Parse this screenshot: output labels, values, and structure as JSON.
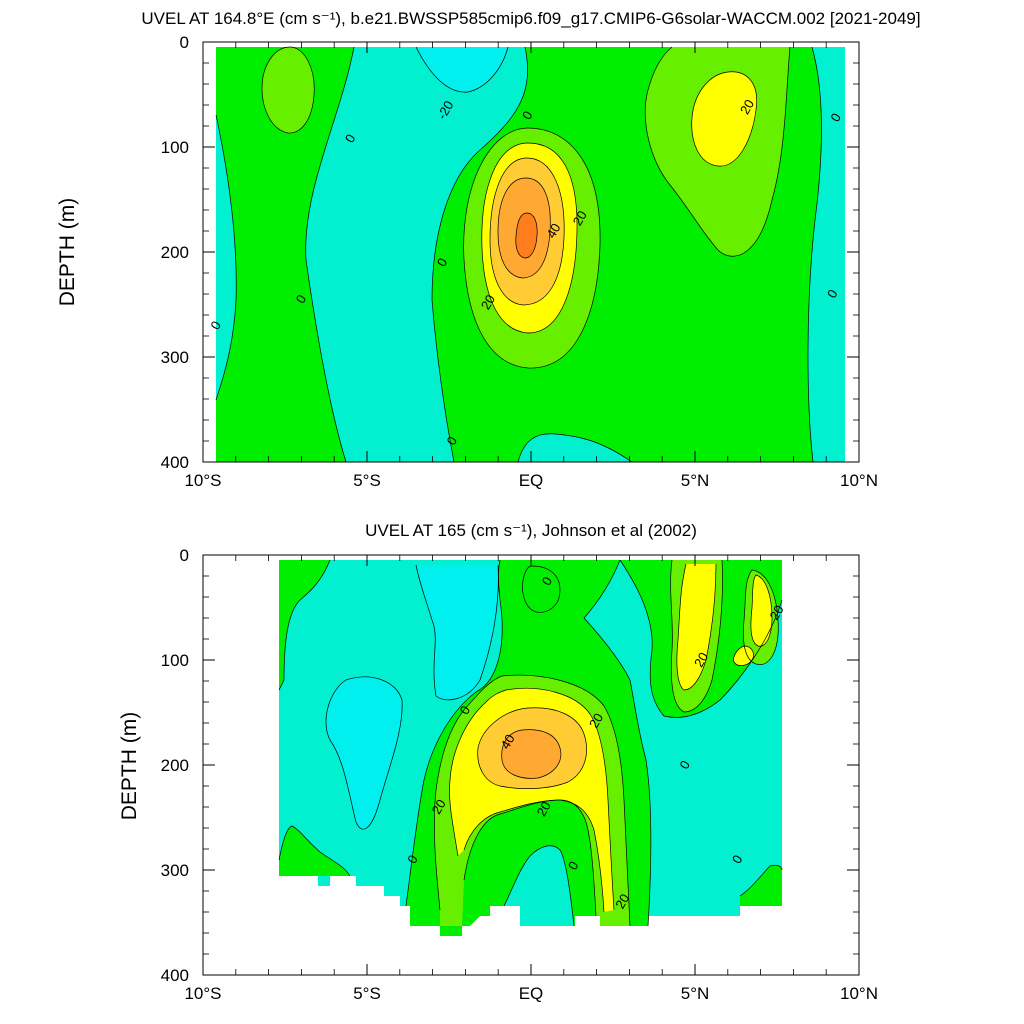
{
  "chart_data": [
    {
      "type": "contour",
      "title": "UVEL AT 164.8°E (cm s⁻¹), b.e21.BWSSP585cmip6.f09_g17.CMIP6-G6solar-WACCM.002 [2021-2049]",
      "xlabel": "",
      "ylabel": "DEPTH (m)",
      "xlim": [
        -10,
        10
      ],
      "ylim": [
        400,
        0
      ],
      "y_reversed": true,
      "x_ticks": [
        {
          "value": -10,
          "label": "10°S"
        },
        {
          "value": -5,
          "label": "5°S"
        },
        {
          "value": 0,
          "label": "EQ"
        },
        {
          "value": 5,
          "label": "5°N"
        },
        {
          "value": 10,
          "label": "10°N"
        }
      ],
      "y_ticks": [
        0,
        100,
        200,
        300,
        400
      ],
      "data_extent": {
        "lat": [
          -10,
          10
        ],
        "depth": [
          5,
          400
        ]
      },
      "contour_levels": [
        -40,
        -30,
        -20,
        -10,
        0,
        10,
        20,
        30,
        40,
        50
      ],
      "contour_labels": [
        {
          "text": "-20",
          "lat": -2.6,
          "depth": 65
        },
        {
          "text": "0",
          "lat": -0.1,
          "depth": 70
        },
        {
          "text": "0",
          "lat": -5.5,
          "depth": 92
        },
        {
          "text": "20",
          "lat": 6.6,
          "depth": 62
        },
        {
          "text": "0",
          "lat": 9.3,
          "depth": 72
        },
        {
          "text": "20",
          "lat": 1.5,
          "depth": 168
        },
        {
          "text": "40",
          "lat": 0.7,
          "depth": 180
        },
        {
          "text": "0",
          "lat": -2.7,
          "depth": 210
        },
        {
          "text": "0",
          "lat": 9.2,
          "depth": 240
        },
        {
          "text": "0",
          "lat": -7.0,
          "depth": 245
        },
        {
          "text": "20",
          "lat": -1.3,
          "depth": 248
        },
        {
          "text": "0",
          "lat": -9.6,
          "depth": 270
        },
        {
          "text": "0",
          "lat": -2.4,
          "depth": 380
        }
      ]
    },
    {
      "type": "contour",
      "title": "UVEL AT 165 (cm s⁻¹), Johnson et al (2002)",
      "xlabel": "",
      "ylabel": "DEPTH (m)",
      "xlim": [
        -10,
        10
      ],
      "ylim": [
        400,
        0
      ],
      "y_reversed": true,
      "x_ticks": [
        {
          "value": -10,
          "label": "10°S"
        },
        {
          "value": -5,
          "label": "5°S"
        },
        {
          "value": 0,
          "label": "EQ"
        },
        {
          "value": 5,
          "label": "5°N"
        },
        {
          "value": 10,
          "label": "10°N"
        }
      ],
      "y_ticks": [
        0,
        100,
        200,
        300,
        400
      ],
      "data_extent": {
        "lat": [
          -8,
          8
        ],
        "depth": [
          5,
          365
        ]
      },
      "contour_levels": [
        -40,
        -30,
        -20,
        -10,
        0,
        10,
        20,
        30,
        40,
        50
      ],
      "contour_labels": [
        {
          "text": "0",
          "lat": 0.5,
          "depth": 25
        },
        {
          "text": "20",
          "lat": 7.5,
          "depth": 55
        },
        {
          "text": "20",
          "lat": 5.2,
          "depth": 100
        },
        {
          "text": "0",
          "lat": -2.0,
          "depth": 148
        },
        {
          "text": "20",
          "lat": 2.0,
          "depth": 158
        },
        {
          "text": "40",
          "lat": -0.7,
          "depth": 178
        },
        {
          "text": "0",
          "lat": 4.7,
          "depth": 200
        },
        {
          "text": "20",
          "lat": -2.8,
          "depth": 240
        },
        {
          "text": "20",
          "lat": 0.4,
          "depth": 242
        },
        {
          "text": "0",
          "lat": -3.6,
          "depth": 290
        },
        {
          "text": "0",
          "lat": 1.3,
          "depth": 296
        },
        {
          "text": "0",
          "lat": 6.3,
          "depth": 290
        },
        {
          "text": "20",
          "lat": 2.8,
          "depth": 330
        }
      ]
    }
  ],
  "colors": {
    "le_-20": "#5ee8ee",
    "-20_to_-10": "#00f0f0",
    "-10_to_0": "#00f0d0",
    "0_to_10": "#00ee00",
    "10_to_20": "#66f000",
    "20_to_30": "#ffff00",
    "30_to_40": "#ffcc33",
    "40_to_50": "#ffa832",
    "ge_50": "#fe7e1e"
  }
}
